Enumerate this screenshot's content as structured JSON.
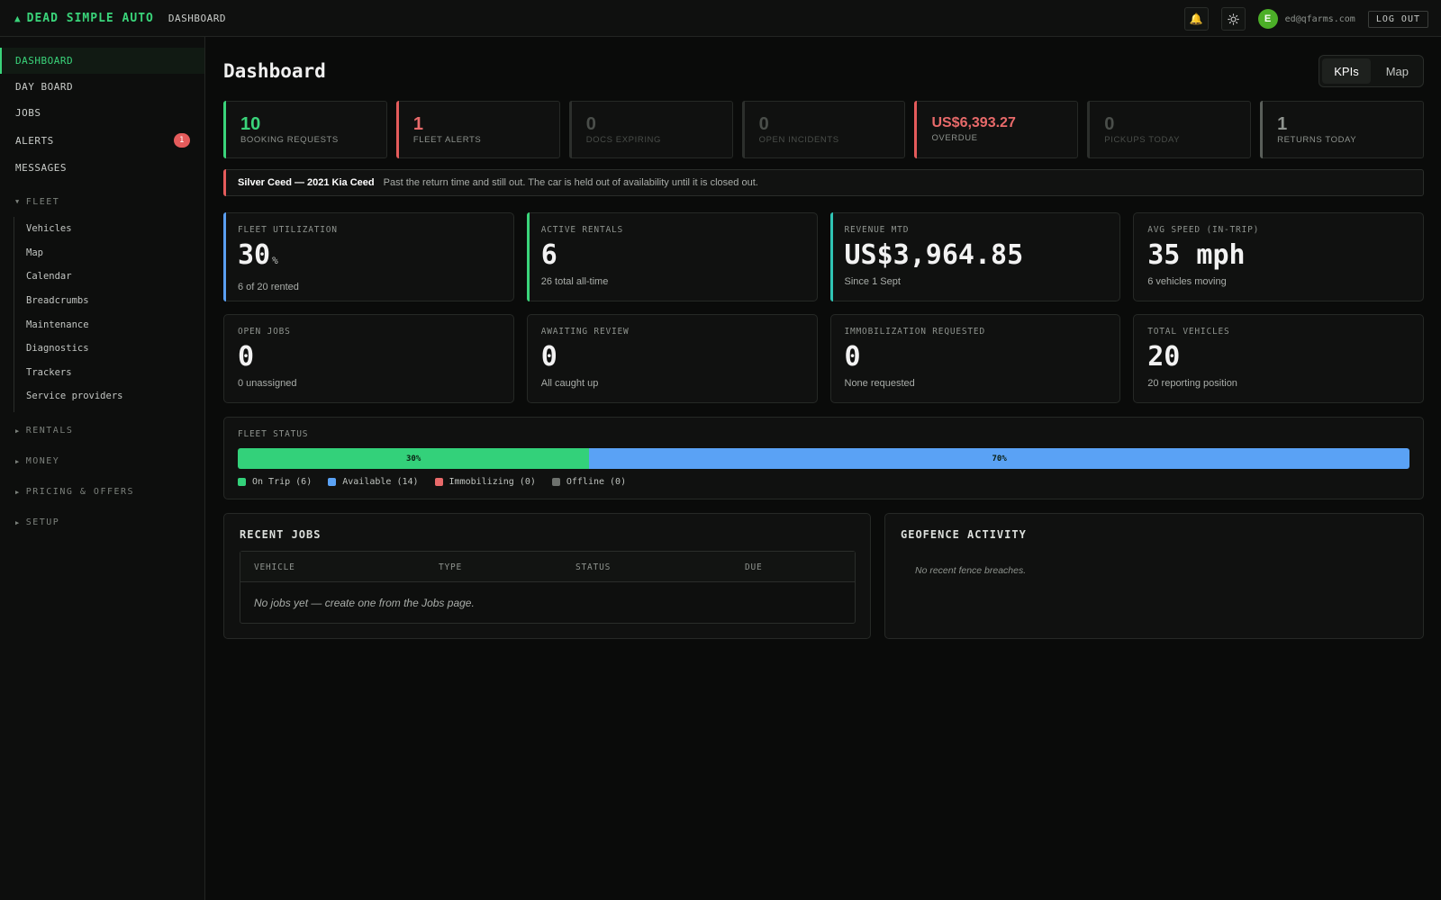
{
  "topbar": {
    "brand": "DEAD SIMPLE AUTO",
    "breadcrumb": "DASHBOARD",
    "user_initial": "E",
    "user_email": "ed@qfarms.com",
    "logout_label": "LOG OUT"
  },
  "sidebar": {
    "items": [
      {
        "label": "DASHBOARD"
      },
      {
        "label": "DAY BOARD"
      },
      {
        "label": "JOBS"
      },
      {
        "label": "ALERTS",
        "badge": "1"
      },
      {
        "label": "MESSAGES"
      }
    ],
    "fleet_section": "FLEET",
    "fleet_items": [
      "Vehicles",
      "Map",
      "Calendar",
      "Breadcrumbs",
      "Maintenance",
      "Diagnostics",
      "Trackers",
      "Service providers"
    ],
    "collapsed_sections": [
      "RENTALS",
      "MONEY",
      "PRICING & OFFERS",
      "SETUP"
    ]
  },
  "main": {
    "title": "Dashboard",
    "view_toggle": [
      "KPIs",
      "Map"
    ],
    "kpis": [
      {
        "value": "10",
        "label": "BOOKING REQUESTS"
      },
      {
        "value": "1",
        "label": "FLEET ALERTS"
      },
      {
        "value": "0",
        "label": "DOCS EXPIRING"
      },
      {
        "value": "0",
        "label": "OPEN INCIDENTS"
      },
      {
        "value": "US$6,393.27",
        "label": "OVERDUE"
      },
      {
        "value": "0",
        "label": "PICKUPS TODAY"
      },
      {
        "value": "1",
        "label": "RETURNS TODAY"
      }
    ],
    "alert": {
      "vehicle": "Silver Ceed — 2021 Kia Ceed",
      "message": "Past the return time and still out. The car is held out of availability until it is closed out."
    },
    "stats": [
      {
        "label": "FLEET UTILIZATION",
        "value": "30",
        "unit": "%",
        "sub": "6 of 20 rented"
      },
      {
        "label": "ACTIVE RENTALS",
        "value": "6",
        "sub": "26 total all-time"
      },
      {
        "label": "REVENUE MTD",
        "value": "US$3,964.85",
        "sub": "Since 1 Sept"
      },
      {
        "label": "AVG SPEED (IN-TRIP)",
        "value": "35 mph",
        "sub": "6 vehicles moving"
      },
      {
        "label": "OPEN JOBS",
        "value": "0",
        "sub": "0 unassigned"
      },
      {
        "label": "AWAITING REVIEW",
        "value": "0",
        "sub": "All caught up"
      },
      {
        "label": "IMMOBILIZATION REQUESTED",
        "value": "0",
        "sub": "None requested"
      },
      {
        "label": "TOTAL VEHICLES",
        "value": "20",
        "sub": "20 reporting position"
      }
    ],
    "fleet_status": {
      "title": "FLEET STATUS",
      "segments": [
        {
          "label": "30%",
          "fraction": 0.3,
          "color": "#33d17a"
        },
        {
          "label": "70%",
          "fraction": 0.7,
          "color": "#5aa2f5"
        }
      ],
      "legend": [
        {
          "label": "On Trip (6)",
          "color": "#33d17a"
        },
        {
          "label": "Available (14)",
          "color": "#5aa2f5"
        },
        {
          "label": "Immobilizing (0)",
          "color": "#e86a6a"
        },
        {
          "label": "Offline (0)",
          "color": "#6e726e"
        }
      ]
    },
    "recent_jobs": {
      "title": "RECENT JOBS",
      "columns": [
        "VEHICLE",
        "TYPE",
        "STATUS",
        "DUE"
      ],
      "empty": "No jobs yet — create one from the Jobs page."
    },
    "geofence": {
      "title": "GEOFENCE ACTIVITY",
      "empty": "No recent fence breaches."
    }
  }
}
